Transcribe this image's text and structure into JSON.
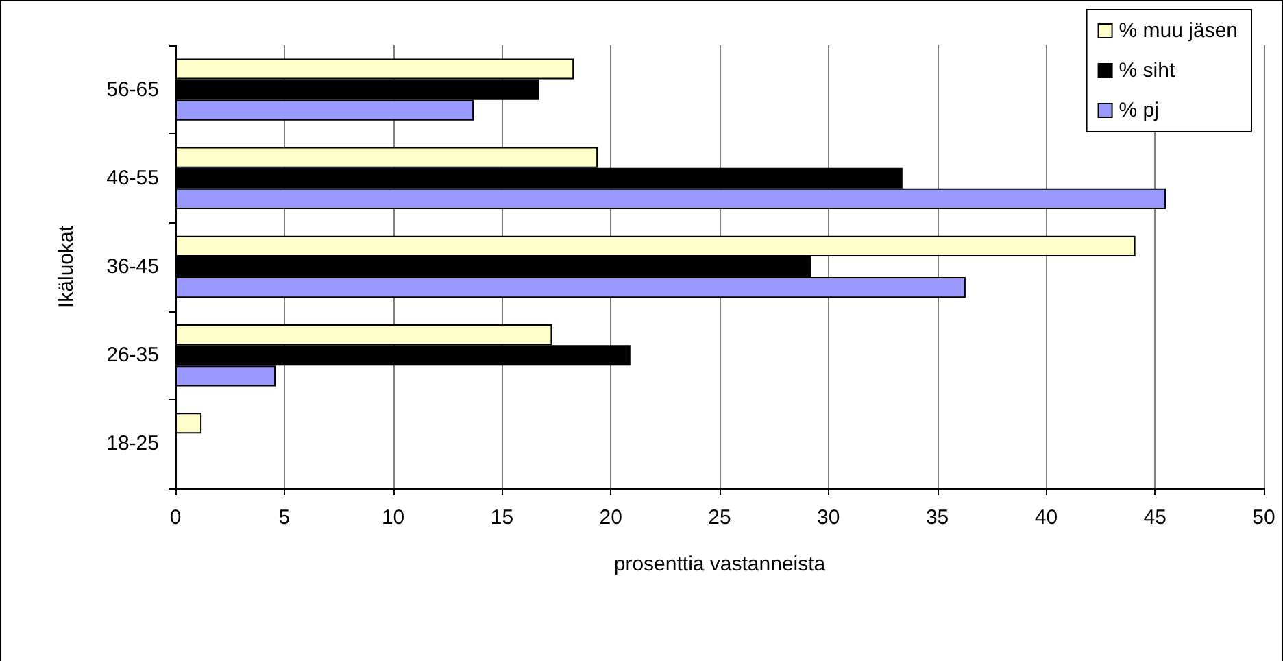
{
  "chart_data": {
    "type": "bar",
    "orientation": "horizontal",
    "xlabel": "prosenttia vastanneista",
    "ylabel": "Ikäluokat",
    "categories": [
      "56-65",
      "46-55",
      "36-45",
      "26-35",
      "18-25"
    ],
    "series": [
      {
        "name": "% muu jäsen",
        "color": "#ffffcc",
        "values": [
          18.3,
          19.4,
          44.1,
          17.3,
          1.2
        ]
      },
      {
        "name": "% siht",
        "color": "#000000",
        "values": [
          16.7,
          33.4,
          29.2,
          20.9,
          null
        ]
      },
      {
        "name": "% pj",
        "color": "#9999ff",
        "values": [
          13.7,
          45.5,
          36.3,
          4.6,
          null
        ]
      }
    ],
    "xlim": [
      0,
      50
    ],
    "xticks": [
      0,
      5,
      10,
      15,
      20,
      25,
      30,
      35,
      40,
      45,
      50
    ],
    "grid": "x",
    "legend": "top right"
  }
}
